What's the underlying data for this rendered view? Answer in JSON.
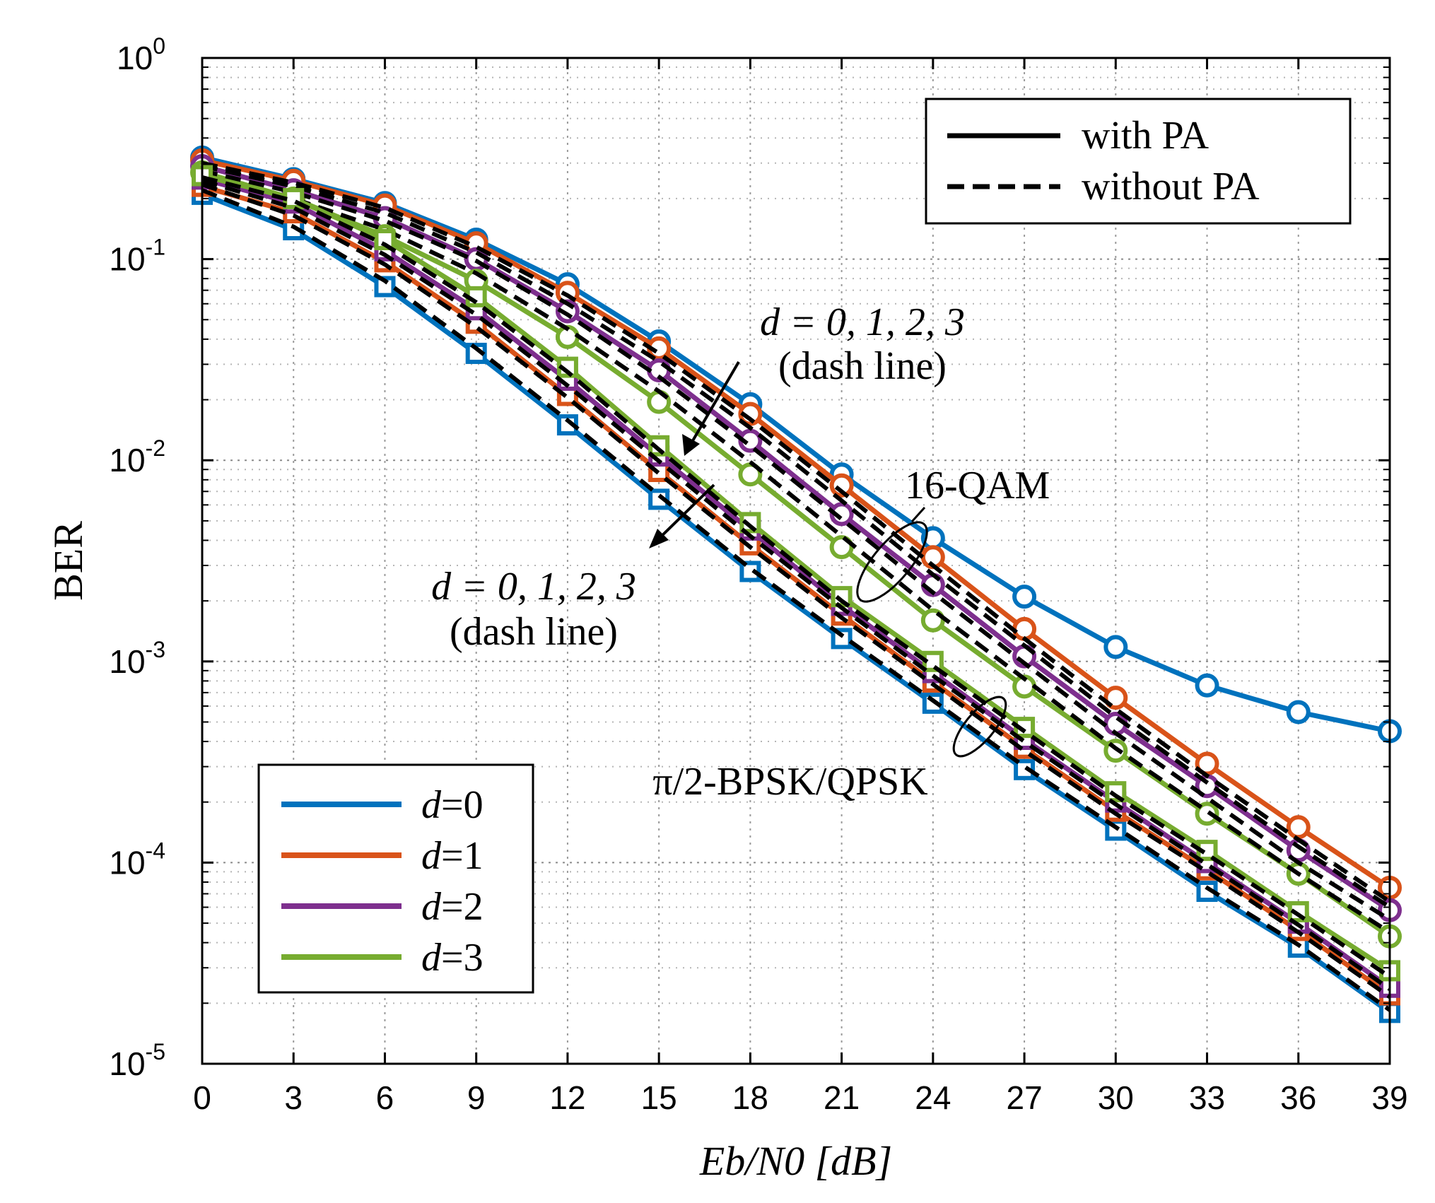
{
  "chart_data": {
    "type": "line",
    "title": "",
    "xlabel": "Eb/N0 [dB]",
    "ylabel": "BER",
    "xlim": [
      0,
      39
    ],
    "ylim_log10": [
      -5,
      0
    ],
    "yscale": "log",
    "grid": true,
    "x": [
      0,
      3,
      6,
      9,
      12,
      15,
      18,
      21,
      24,
      27,
      30,
      33,
      36,
      39
    ],
    "x_tick_labels": [
      "0",
      "3",
      "6",
      "9",
      "12",
      "15",
      "18",
      "21",
      "24",
      "27",
      "30",
      "33",
      "36",
      "39"
    ],
    "y_ticks": [
      {
        "exp": 0,
        "base": "10",
        "sup": "0"
      },
      {
        "exp": -1,
        "base": "10",
        "sup": "-1"
      },
      {
        "exp": -2,
        "base": "10",
        "sup": "-2"
      },
      {
        "exp": -3,
        "base": "10",
        "sup": "-3"
      },
      {
        "exp": -4,
        "base": "10",
        "sup": "-4"
      },
      {
        "exp": -5,
        "base": "10",
        "sup": "-5"
      }
    ],
    "colors": {
      "d0": "#0072BD",
      "d1": "#D95319",
      "d2": "#7E2F8E",
      "d3": "#77AC30",
      "dash": "#000000"
    },
    "series": [
      {
        "name": "16-QAM d=0 with PA",
        "group": "16-QAM",
        "d": 0,
        "pa": true,
        "marker": "circle",
        "color_key": "d0",
        "values": [
          0.32,
          0.25,
          0.19,
          0.125,
          0.075,
          0.039,
          0.019,
          0.0085,
          0.0041,
          0.0021,
          0.00118,
          0.00076,
          0.00056,
          0.00045
        ]
      },
      {
        "name": "16-QAM d=1 with PA",
        "group": "16-QAM",
        "d": 1,
        "pa": true,
        "marker": "circle",
        "color_key": "d1",
        "values": [
          0.31,
          0.245,
          0.185,
          0.12,
          0.068,
          0.036,
          0.017,
          0.0075,
          0.0033,
          0.00145,
          0.00066,
          0.00031,
          0.00015,
          7.5e-05
        ]
      },
      {
        "name": "16-QAM d=2 with PA",
        "group": "16-QAM",
        "d": 2,
        "pa": true,
        "marker": "circle",
        "color_key": "d2",
        "values": [
          0.29,
          0.22,
          0.16,
          0.1,
          0.055,
          0.028,
          0.0125,
          0.0054,
          0.0024,
          0.00106,
          0.00049,
          0.00024,
          0.000115,
          5.8e-05
        ]
      },
      {
        "name": "16-QAM d=3 with PA",
        "group": "16-QAM",
        "d": 3,
        "pa": true,
        "marker": "circle",
        "color_key": "d3",
        "values": [
          0.27,
          0.2,
          0.13,
          0.078,
          0.041,
          0.0195,
          0.0085,
          0.0037,
          0.0016,
          0.00075,
          0.00036,
          0.000175,
          8.8e-05,
          4.3e-05
        ]
      },
      {
        "name": "16-QAM d=0 without PA",
        "group": "16-QAM",
        "d": 0,
        "pa": false,
        "marker": "none",
        "color_key": "dash",
        "values": [
          0.3,
          0.24,
          0.18,
          0.115,
          0.066,
          0.034,
          0.016,
          0.007,
          0.003,
          0.0013,
          0.00058,
          0.00027,
          0.00013,
          6.4e-05
        ]
      },
      {
        "name": "16-QAM d=1 without PA",
        "group": "16-QAM",
        "d": 1,
        "pa": false,
        "marker": "none",
        "color_key": "dash",
        "values": [
          0.29,
          0.23,
          0.17,
          0.108,
          0.06,
          0.031,
          0.0145,
          0.0063,
          0.0027,
          0.0012,
          0.00053,
          0.00025,
          0.00012,
          6e-05
        ]
      },
      {
        "name": "16-QAM d=2 without PA",
        "group": "16-QAM",
        "d": 2,
        "pa": false,
        "marker": "none",
        "color_key": "dash",
        "values": [
          0.275,
          0.215,
          0.155,
          0.098,
          0.053,
          0.026,
          0.0118,
          0.0051,
          0.0022,
          0.00098,
          0.00044,
          0.00021,
          0.0001,
          5.2e-05
        ]
      },
      {
        "name": "16-QAM d=3 without PA",
        "group": "16-QAM",
        "d": 3,
        "pa": false,
        "marker": "none",
        "color_key": "dash",
        "values": [
          0.26,
          0.2,
          0.14,
          0.085,
          0.045,
          0.022,
          0.0098,
          0.0042,
          0.0018,
          0.00082,
          0.00037,
          0.00018,
          8.8e-05,
          4.5e-05
        ]
      },
      {
        "name": "pi/2-BPSK/QPSK d=0 with PA",
        "group": "pi/2-BPSK/QPSK",
        "d": 0,
        "pa": true,
        "marker": "square",
        "color_key": "d0",
        "values": [
          0.21,
          0.14,
          0.073,
          0.034,
          0.015,
          0.0064,
          0.0028,
          0.0013,
          0.00062,
          0.00029,
          0.000145,
          7.2e-05,
          3.8e-05,
          1.8e-05
        ]
      },
      {
        "name": "pi/2-BPSK/QPSK d=1 with PA",
        "group": "pi/2-BPSK/QPSK",
        "d": 1,
        "pa": true,
        "marker": "square",
        "color_key": "d1",
        "values": [
          0.23,
          0.17,
          0.097,
          0.048,
          0.021,
          0.0088,
          0.0038,
          0.0017,
          0.00079,
          0.00037,
          0.00018,
          9.2e-05,
          4.6e-05,
          2.2e-05
        ]
      },
      {
        "name": "pi/2-BPSK/QPSK d=2 with PA",
        "group": "pi/2-BPSK/QPSK",
        "d": 2,
        "pa": true,
        "marker": "square",
        "color_key": "d2",
        "values": [
          0.25,
          0.19,
          0.11,
          0.056,
          0.025,
          0.0105,
          0.0045,
          0.0019,
          0.00088,
          0.00041,
          0.0002,
          0.0001,
          5e-05,
          2.4e-05
        ]
      },
      {
        "name": "pi/2-BPSK/QPSK d=3 with PA",
        "group": "pi/2-BPSK/QPSK",
        "d": 3,
        "pa": true,
        "marker": "square",
        "color_key": "d3",
        "values": [
          0.26,
          0.2,
          0.125,
          0.065,
          0.029,
          0.0118,
          0.0049,
          0.0021,
          0.001,
          0.00047,
          0.000225,
          0.000115,
          5.7e-05,
          2.9e-05
        ]
      },
      {
        "name": "pi/2-BPSK/QPSK d=0 without PA",
        "group": "pi/2-BPSK/QPSK",
        "d": 0,
        "pa": false,
        "marker": "none",
        "color_key": "dash",
        "values": [
          0.22,
          0.145,
          0.078,
          0.036,
          0.0158,
          0.0067,
          0.0029,
          0.00135,
          0.00064,
          0.0003,
          0.00015,
          7.5e-05,
          3.9e-05,
          1.85e-05
        ]
      },
      {
        "name": "pi/2-BPSK/QPSK d=1 without PA",
        "group": "pi/2-BPSK/QPSK",
        "d": 1,
        "pa": false,
        "marker": "none",
        "color_key": "dash",
        "values": [
          0.235,
          0.165,
          0.094,
          0.046,
          0.0205,
          0.0086,
          0.0037,
          0.00165,
          0.00077,
          0.00036,
          0.000175,
          9e-05,
          4.5e-05,
          2.15e-05
        ]
      },
      {
        "name": "pi/2-BPSK/QPSK d=2 without PA",
        "group": "pi/2-BPSK/QPSK",
        "d": 2,
        "pa": false,
        "marker": "none",
        "color_key": "dash",
        "values": [
          0.245,
          0.18,
          0.105,
          0.053,
          0.0235,
          0.0099,
          0.0042,
          0.00185,
          0.00085,
          0.0004,
          0.000195,
          9.8e-05,
          4.9e-05,
          2.35e-05
        ]
      },
      {
        "name": "pi/2-BPSK/QPSK d=3 without PA",
        "group": "pi/2-BPSK/QPSK",
        "d": 3,
        "pa": false,
        "marker": "none",
        "color_key": "dash",
        "values": [
          0.255,
          0.195,
          0.118,
          0.061,
          0.0275,
          0.0113,
          0.0047,
          0.002,
          0.00095,
          0.00045,
          0.000215,
          0.00011,
          5.5e-05,
          2.7e-05
        ]
      }
    ],
    "legend_pa": {
      "placement": "top-right",
      "items": [
        {
          "label": "with PA",
          "style": "solid"
        },
        {
          "label": "without PA",
          "style": "dashed"
        }
      ]
    },
    "legend_d": {
      "placement": "bottom-left",
      "items": [
        {
          "var": "d",
          "eq": "=",
          "val": "0",
          "color_key": "d0"
        },
        {
          "var": "d",
          "eq": "=",
          "val": "1",
          "color_key": "d1"
        },
        {
          "var": "d",
          "eq": "=",
          "val": "2",
          "color_key": "d2"
        },
        {
          "var": "d",
          "eq": "=",
          "val": "3",
          "color_key": "d3"
        }
      ]
    },
    "annotations": {
      "qam_dash_line": {
        "eq": "d = 0, 1, 2, 3",
        "sub": "(dash line)"
      },
      "bpsk_dash_line": {
        "eq": "d = 0, 1, 2, 3",
        "sub": "(dash line)"
      },
      "qam_label": "16-QAM",
      "bpsk_label": "π/2-BPSK/QPSK"
    }
  }
}
